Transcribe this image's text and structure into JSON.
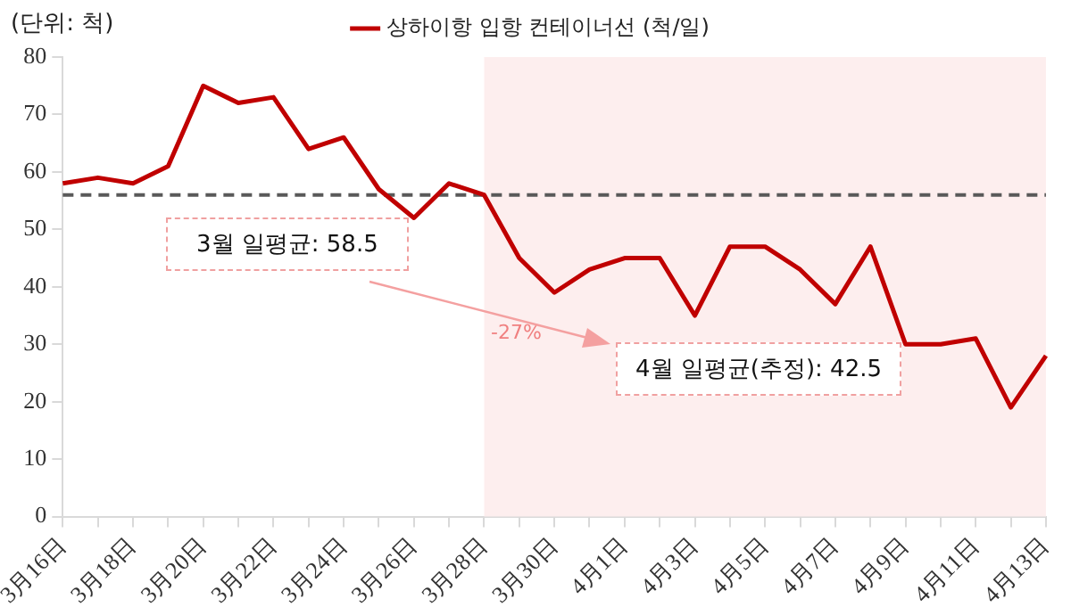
{
  "chart_data": {
    "type": "line",
    "ylabel": "(단위: 척)",
    "categories": [
      "3月16日",
      null,
      "3月18日",
      null,
      "3月20日",
      null,
      "3月22日",
      null,
      "3月24日",
      null,
      "3月26日",
      null,
      "3月28日",
      null,
      "3月30日",
      null,
      "4月1日",
      null,
      "4月3日",
      null,
      "4月5日",
      null,
      "4月7日",
      null,
      "4月9日",
      null,
      "4月11日",
      null,
      "4月13日"
    ],
    "series": [
      {
        "name": "상하이항 입항 컨테이너선 (척/일)",
        "color": "#c00000",
        "values": [
          58,
          59,
          58,
          61,
          75,
          72,
          73,
          64,
          66,
          57,
          52,
          58,
          56,
          45,
          39,
          43,
          45,
          45,
          35,
          47,
          47,
          43,
          37,
          47,
          30,
          30,
          31,
          19,
          28
        ]
      }
    ],
    "ylim": [
      0,
      80
    ],
    "yticks": [
      0,
      10,
      20,
      30,
      40,
      50,
      60,
      70,
      80
    ],
    "ref_lines": [
      {
        "axis": "y",
        "value": 56,
        "color": "#595959",
        "line_style": "dashed"
      }
    ],
    "bands": [
      {
        "axis": "x",
        "from": "3月28日",
        "to": "4月13日",
        "color": "#fdeeee"
      }
    ],
    "annotations": [
      "3월 일평균: 58.5",
      "-27%",
      "4월 일평균(추정): 42.5"
    ],
    "legend": "top",
    "grid": false,
    "marker": "none",
    "line_style": "solid"
  }
}
